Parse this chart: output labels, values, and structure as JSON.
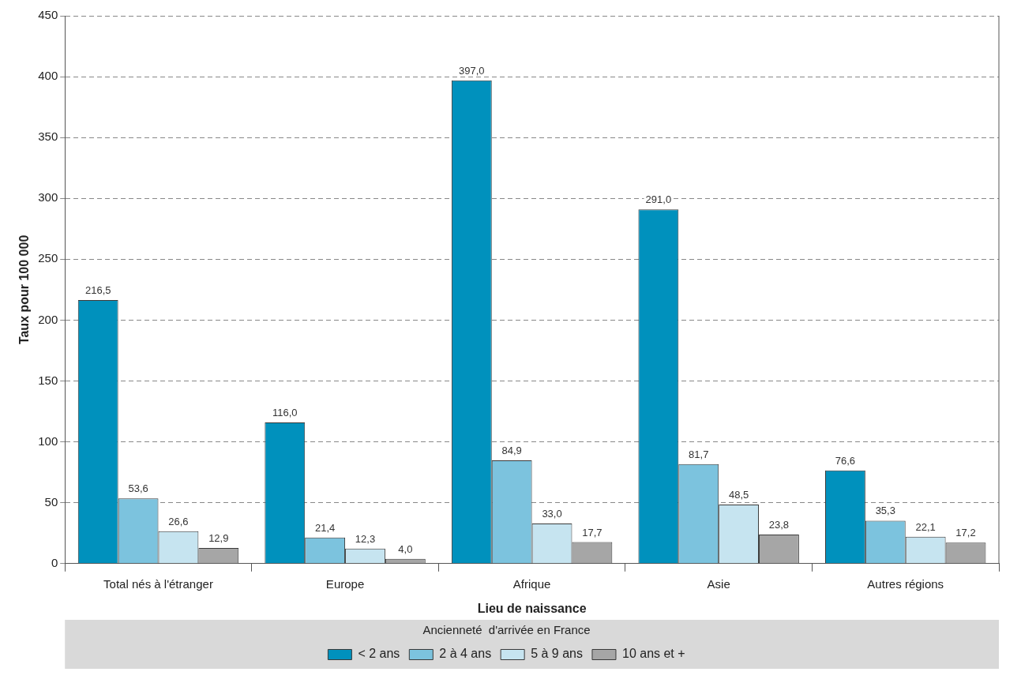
{
  "chart_data": {
    "type": "bar",
    "xlabel": "Lieu de naissance",
    "ylabel": "Taux pour 100 000",
    "legend_title": "Ancienneté  d'arrivée en France",
    "categories": [
      "Total nés à l'étranger",
      "Europe",
      "Afrique",
      "Asie",
      "Autres régions"
    ],
    "series": [
      {
        "name": "< 2 ans",
        "color": "#0091bd",
        "values": [
          216.5,
          116.0,
          397.0,
          291.0,
          76.6
        ],
        "value_labels": [
          "216,5",
          "116,0",
          "397,0",
          "291,0",
          "76,6"
        ]
      },
      {
        "name": "2 à 4 ans",
        "color": "#7cc3de",
        "values": [
          53.6,
          21.4,
          84.9,
          81.7,
          35.3
        ],
        "value_labels": [
          "53,6",
          "21,4",
          "84,9",
          "81,7",
          "35,3"
        ]
      },
      {
        "name": "5 à 9 ans",
        "color": "#c6e4f0",
        "values": [
          26.6,
          12.3,
          33.0,
          48.5,
          22.1
        ],
        "value_labels": [
          "26,6",
          "12,3",
          "33,0",
          "48,5",
          "22,1"
        ]
      },
      {
        "name": "10 ans et +",
        "color": "#a6a6a6",
        "values": [
          12.9,
          4.0,
          17.7,
          23.8,
          17.2
        ],
        "value_labels": [
          "12,9",
          "4,0",
          "17,7",
          "23,8",
          "17,2"
        ]
      }
    ],
    "ylim": [
      0,
      450
    ],
    "yticks": [
      0,
      50,
      100,
      150,
      200,
      250,
      300,
      350,
      400,
      450
    ],
    "grid": "y",
    "legend": "bottom"
  }
}
